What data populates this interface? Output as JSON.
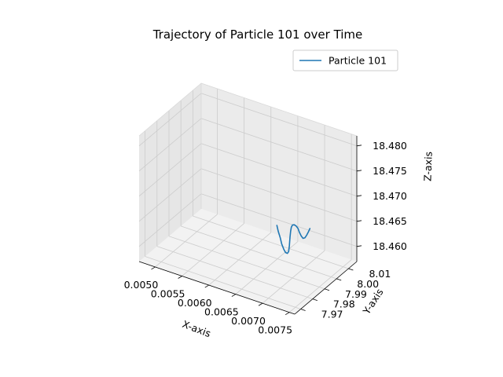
{
  "chart_data": {
    "type": "line",
    "projection": "3d",
    "title": "Trajectory of Particle 101 over Time",
    "xlabel": "X-axis",
    "ylabel": "Y-axis",
    "zlabel": "Z-axis",
    "xlim": [
      0.0047,
      0.0076
    ],
    "ylim": [
      7.965,
      8.017
    ],
    "zlim": [
      18.457,
      18.482
    ],
    "xticks": [
      "0.0050",
      "0.0055",
      "0.0060",
      "0.0065",
      "0.0070",
      "0.0075"
    ],
    "yticks": [
      "7.97",
      "7.98",
      "7.99",
      "8.00",
      "8.01"
    ],
    "zticks": [
      "18.460",
      "18.465",
      "18.470",
      "18.475",
      "18.480"
    ],
    "grid": true,
    "legend": {
      "position": "top-right",
      "entries": [
        "Particle 101"
      ]
    },
    "series": [
      {
        "name": "Particle 101",
        "color": "#1f77b4",
        "points": [
          [
            0.0066,
            7.995,
            18.465
          ],
          [
            0.00662,
            7.9953,
            18.4638
          ],
          [
            0.00665,
            7.9956,
            18.4626
          ],
          [
            0.00667,
            7.9959,
            18.4614
          ],
          [
            0.0067,
            7.9962,
            18.4604
          ],
          [
            0.00673,
            7.9964,
            18.4598
          ],
          [
            0.00676,
            7.9966,
            18.4597
          ],
          [
            0.00678,
            7.9968,
            18.4601
          ],
          [
            0.00679,
            7.9969,
            18.4613
          ],
          [
            0.0068,
            7.997,
            18.463
          ],
          [
            0.00681,
            7.9971,
            18.4642
          ],
          [
            0.00682,
            7.9972,
            18.465
          ],
          [
            0.00684,
            7.9973,
            18.4655
          ],
          [
            0.00687,
            7.9975,
            18.4656
          ],
          [
            0.0069,
            7.9977,
            18.4654
          ],
          [
            0.00693,
            7.9979,
            18.465
          ],
          [
            0.00695,
            7.9981,
            18.4643
          ],
          [
            0.00698,
            7.9983,
            18.4636
          ],
          [
            0.00701,
            7.9985,
            18.4632
          ],
          [
            0.00704,
            7.9987,
            18.4634
          ],
          [
            0.00707,
            7.9989,
            18.464
          ],
          [
            0.0071,
            7.9991,
            18.4648
          ],
          [
            0.00712,
            7.9993,
            18.4654
          ]
        ]
      }
    ]
  }
}
